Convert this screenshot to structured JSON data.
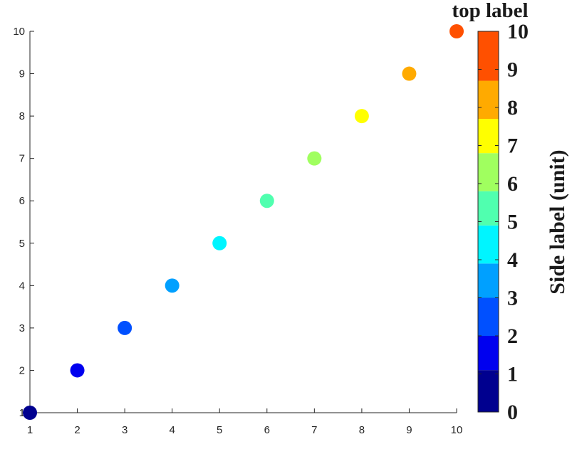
{
  "chart_data": {
    "type": "scatter",
    "title": "",
    "xlabel": "",
    "ylabel": "",
    "xlim": [
      1,
      10
    ],
    "ylim": [
      1,
      10
    ],
    "x_ticks": [
      "1",
      "2",
      "3",
      "4",
      "5",
      "6",
      "7",
      "8",
      "9",
      "10"
    ],
    "y_ticks": [
      "1",
      "2",
      "3",
      "4",
      "5",
      "6",
      "7",
      "8",
      "9",
      "10"
    ],
    "grid": false,
    "series": [
      {
        "x": [
          1,
          2,
          3,
          4,
          5,
          6,
          7,
          8,
          9,
          10
        ],
        "y": [
          1,
          2,
          3,
          4,
          5,
          6,
          7,
          8,
          9,
          10
        ],
        "colors": [
          "#00008f",
          "#0000ef",
          "#0050ff",
          "#00a0ff",
          "#00f5ff",
          "#50ffaf",
          "#a0ff5f",
          "#ffff00",
          "#ffaa00",
          "#ff5000"
        ]
      }
    ],
    "colorbar": {
      "top_label": "top label",
      "side_label": "Side label (unit)",
      "range": [
        0,
        10
      ],
      "ticks": [
        "0",
        "1",
        "2",
        "3",
        "4",
        "5",
        "6",
        "7",
        "8",
        "9",
        "10"
      ],
      "bins": [
        {
          "from": 0,
          "to": 1.1,
          "color": "#00008f"
        },
        {
          "from": 1.1,
          "to": 2.0,
          "color": "#0000ef"
        },
        {
          "from": 2.0,
          "to": 3.0,
          "color": "#0050ff"
        },
        {
          "from": 3.0,
          "to": 3.9,
          "color": "#00a0ff"
        },
        {
          "from": 3.9,
          "to": 4.9,
          "color": "#00f5ff"
        },
        {
          "from": 4.9,
          "to": 5.8,
          "color": "#50ffaf"
        },
        {
          "from": 5.8,
          "to": 6.8,
          "color": "#a0ff5f"
        },
        {
          "from": 6.8,
          "to": 7.7,
          "color": "#ffff00"
        },
        {
          "from": 7.7,
          "to": 8.7,
          "color": "#ffaa00"
        },
        {
          "from": 8.7,
          "to": 10,
          "color": "#ff5000"
        }
      ]
    }
  }
}
